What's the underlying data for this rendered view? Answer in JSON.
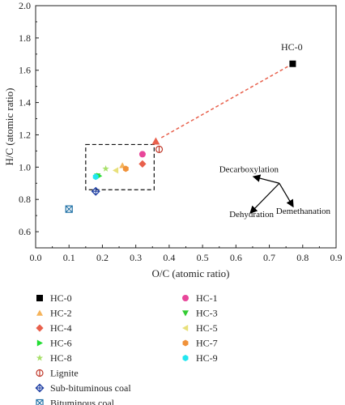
{
  "chart_data": {
    "type": "scatter",
    "xlabel": "O/C (atomic ratio)",
    "ylabel": "H/C (atomic ratio)",
    "xlim": [
      0.0,
      0.9
    ],
    "ylim": [
      0.5,
      2.0
    ],
    "x_ticks": [
      "0.0",
      "0.1",
      "0.2",
      "0.3",
      "0.4",
      "0.5",
      "0.6",
      "0.7",
      "0.8",
      "0.9"
    ],
    "y_ticks": [
      "0.6",
      "0.8",
      "1.0",
      "1.2",
      "1.4",
      "1.6",
      "1.8",
      "2.0"
    ],
    "grid": false,
    "legend_position": "bottom",
    "series": [
      {
        "name": "HC-0",
        "marker": "square",
        "color": "#000000",
        "x": 0.77,
        "y": 1.64
      },
      {
        "name": "HC-1",
        "marker": "circle",
        "color": "#e8479a",
        "x": 0.32,
        "y": 1.08
      },
      {
        "name": "HC-2",
        "marker": "triangle-up",
        "color": "#f5b35a",
        "x": 0.26,
        "y": 1.01
      },
      {
        "name": "HC-3",
        "marker": "triangle-down",
        "color": "#33cc33",
        "x": 0.185,
        "y": 0.945
      },
      {
        "name": "HC-4",
        "marker": "diamond",
        "color": "#e8604c",
        "x": 0.32,
        "y": 1.02
      },
      {
        "name": "HC-5",
        "marker": "triangle-left",
        "color": "#e8e07a",
        "x": 0.24,
        "y": 0.98
      },
      {
        "name": "HC-6",
        "marker": "triangle-right",
        "color": "#22dd33",
        "x": 0.19,
        "y": 0.945
      },
      {
        "name": "HC-7",
        "marker": "hexagon",
        "color": "#f0923a",
        "x": 0.27,
        "y": 0.99
      },
      {
        "name": "HC-8",
        "marker": "star",
        "color": "#a8e06a",
        "x": 0.21,
        "y": 0.99
      },
      {
        "name": "HC-9",
        "marker": "hexagon",
        "color": "#22e6f0",
        "x": 0.18,
        "y": 0.94
      },
      {
        "name": "Lignite",
        "marker": "circle-bar",
        "color": "#c0392b",
        "x": 0.37,
        "y": 1.11
      },
      {
        "name": "Sub-bituminous coal",
        "marker": "diamond-plus",
        "color": "#1f3fa3",
        "x": 0.18,
        "y": 0.85
      },
      {
        "name": "Bituminous coal",
        "marker": "square-x",
        "color": "#1d6fa5",
        "x": 0.1,
        "y": 0.74
      }
    ],
    "trend_line": {
      "from": [
        0.77,
        1.64
      ],
      "to": [
        0.36,
        1.16
      ],
      "color": "#e8604c",
      "style": "dashed",
      "arrow_at": "to"
    },
    "box": {
      "x0": 0.15,
      "x1": 0.355,
      "y0": 0.86,
      "y1": 1.14
    },
    "annotations": [
      {
        "text": "HC-0",
        "x": 0.735,
        "y": 1.725
      },
      {
        "text": "Decarboxylation",
        "x": 0.55,
        "y": 0.97
      },
      {
        "text": "Dehydration",
        "x": 0.58,
        "y": 0.69
      },
      {
        "text": "Demethanation",
        "x": 0.72,
        "y": 0.71
      }
    ],
    "van_krevelen_arrows": {
      "origin": [
        0.73,
        0.9
      ],
      "directions": [
        {
          "label": "Decarboxylation",
          "to": [
            0.655,
            0.94
          ]
        },
        {
          "label": "Dehydration",
          "to": [
            0.645,
            0.72
          ]
        },
        {
          "label": "Demethanation",
          "to": [
            0.77,
            0.76
          ]
        }
      ]
    }
  }
}
